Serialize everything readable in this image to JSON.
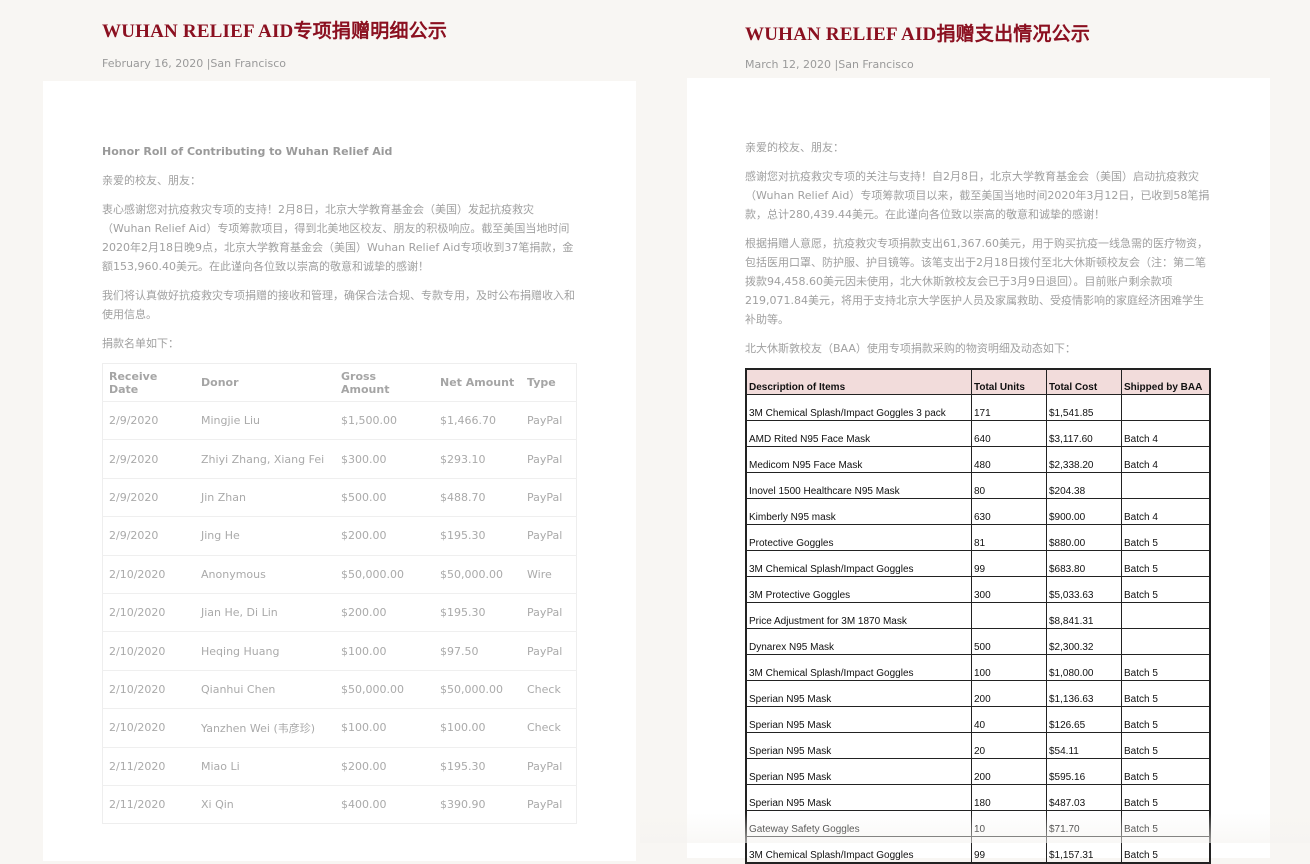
{
  "left": {
    "title": "WUHAN RELIEF AID专项捐赠明细公示",
    "meta": "February 16, 2020 |San Francisco",
    "heading": "Honor Roll of Contributing to Wuhan Relief Aid",
    "greeting": "亲爱的校友、朋友：",
    "para1": "衷心感谢您对抗疫救灾专项的支持！2月8日，北京大学教育基金会（美国）发起抗疫救灾（Wuhan Relief Aid）专项筹款项目，得到北美地区校友、朋友的积极响应。截至美国当地时间2020年2月18日晚9点，北京大学教育基金会（美国）Wuhan Relief Aid专项收到37笔捐款，金额153,960.40美元。在此谨向各位致以崇高的敬意和诚挚的感谢！",
    "para2": "我们将认真做好抗疫救灾专项捐赠的接收和管理，确保合法合规、专款专用，及时公布捐赠收入和使用信息。",
    "list_intro": "捐款名单如下：",
    "table": {
      "headers": [
        "Receive Date",
        "Donor",
        "Gross Amount",
        "Net Amount",
        "Type"
      ],
      "rows": [
        [
          "2/9/2020",
          "Mingjie Liu",
          "$1,500.00",
          "$1,466.70",
          "PayPal"
        ],
        [
          "2/9/2020",
          "Zhiyi Zhang, Xiang Fei",
          "$300.00",
          "$293.10",
          "PayPal"
        ],
        [
          "2/9/2020",
          "Jin Zhan",
          "$500.00",
          "$488.70",
          "PayPal"
        ],
        [
          "2/9/2020",
          "Jing He",
          "$200.00",
          "$195.30",
          "PayPal"
        ],
        [
          "2/10/2020",
          "Anonymous",
          "$50,000.00",
          "$50,000.00",
          "Wire"
        ],
        [
          "2/10/2020",
          "Jian He, Di Lin",
          "$200.00",
          "$195.30",
          "PayPal"
        ],
        [
          "2/10/2020",
          "Heqing Huang",
          "$100.00",
          "$97.50",
          "PayPal"
        ],
        [
          "2/10/2020",
          "Qianhui Chen",
          "$50,000.00",
          "$50,000.00",
          "Check"
        ],
        [
          "2/10/2020",
          "Yanzhen Wei (韦彦珍)",
          "$100.00",
          "$100.00",
          "Check"
        ],
        [
          "2/11/2020",
          "Miao Li",
          "$200.00",
          "$195.30",
          "PayPal"
        ],
        [
          "2/11/2020",
          "Xi Qin",
          "$400.00",
          "$390.90",
          "PayPal"
        ]
      ]
    }
  },
  "right": {
    "title": "WUHAN RELIEF AID捐赠支出情况公示",
    "meta": "March 12, 2020 |San Francisco",
    "greeting": "亲爱的校友、朋友：",
    "para1": "感谢您对抗疫救灾专项的关注与支持！自2月8日，北京大学教育基金会（美国）启动抗疫救灾（Wuhan Relief Aid）专项筹款项目以来，截至美国当地时间2020年3月12日，已收到58笔捐款，总计280,439.44美元。在此谨向各位致以崇高的敬意和诚挚的感谢！",
    "para2": "根据捐赠人意愿，抗疫救灾专项捐款支出61,367.60美元，用于购买抗疫一线急需的医疗物资，包括医用口罩、防护服、护目镜等。该笔支出于2月18日拨付至北大休斯顿校友会（注：第二笔拨款94,458.60美元因未使用，北大休斯敦校友会已于3月9日退回）。目前账户剩余款项219,071.84美元，将用于支持北京大学医护人员及家属救助、受疫情影响的家庭经济困难学生补助等。",
    "list_intro": "北大休斯敦校友（BAA）使用专项捐款采购的物资明细及动态如下：",
    "table": {
      "headers": [
        "Description of Items",
        "Total  Units",
        "Total Cost",
        "Shipped by BAA"
      ],
      "rows": [
        [
          "3M Chemical Splash/Impact Goggles 3 pack",
          "171",
          "$1,541.85",
          ""
        ],
        [
          "AMD Rited N95 Face Mask",
          "640",
          "$3,117.60",
          "Batch 4"
        ],
        [
          "Medicom N95 Face Mask",
          "480",
          "$2,338.20",
          "Batch 4"
        ],
        [
          "Inovel 1500 Healthcare N95 Mask",
          "80",
          "$204.38",
          ""
        ],
        [
          "Kimberly N95 mask",
          "630",
          "$900.00",
          "Batch 4"
        ],
        [
          "Protective Goggles",
          "81",
          "$880.00",
          "Batch 5"
        ],
        [
          "3M Chemical Splash/Impact Goggles",
          "99",
          "$683.80",
          "Batch 5"
        ],
        [
          "3M Protective Goggles",
          "300",
          "$5,033.63",
          "Batch 5"
        ],
        [
          "Price Adjustment for 3M 1870 Mask",
          "",
          "$8,841.31",
          ""
        ],
        [
          "Dynarex N95 Mask",
          "500",
          "$2,300.32",
          ""
        ],
        [
          "3M Chemical Splash/Impact Goggles",
          "100",
          "$1,080.00",
          "Batch 5"
        ],
        [
          "Sperian N95 Mask",
          "200",
          "$1,136.63",
          "Batch 5"
        ],
        [
          "Sperian N95 Mask",
          "40",
          "$126.65",
          "Batch 5"
        ],
        [
          "Sperian N95 Mask",
          "20",
          "$54.11",
          "Batch 5"
        ],
        [
          "Sperian N95 Mask",
          "200",
          "$595.16",
          "Batch 5"
        ],
        [
          "Sperian N95 Mask",
          "180",
          "$487.03",
          "Batch 5"
        ],
        [
          "Gateway Safety Goggles",
          "10",
          "$71.70",
          "Batch 5"
        ],
        [
          "3M Chemical Splash/Impact Goggles",
          "99",
          "$1,157.31",
          "Batch 5"
        ]
      ]
    }
  },
  "colors": {
    "title": "#8b1020",
    "table_header_bg": "#f2dcdb",
    "background": "#f8f6f3"
  }
}
